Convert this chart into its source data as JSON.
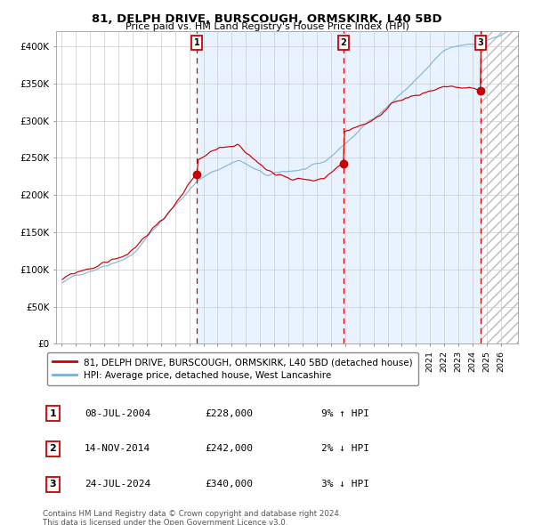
{
  "title": "81, DELPH DRIVE, BURSCOUGH, ORMSKIRK, L40 5BD",
  "subtitle": "Price paid vs. HM Land Registry's House Price Index (HPI)",
  "ylim": [
    0,
    420000
  ],
  "yticks": [
    0,
    50000,
    100000,
    150000,
    200000,
    250000,
    300000,
    350000,
    400000
  ],
  "ytick_labels": [
    "£0",
    "£50K",
    "£100K",
    "£150K",
    "£200K",
    "£250K",
    "£300K",
    "£350K",
    "£400K"
  ],
  "line1_color": "#cc0000",
  "line2_color": "#7bafd4",
  "sale_marker_color": "#cc0000",
  "vline_color": "#cc0000",
  "shade_color": "#ddeeff",
  "sale1_date": 2004.52,
  "sale1_price": 228000,
  "sale2_date": 2014.87,
  "sale2_price": 242000,
  "sale3_date": 2024.56,
  "sale3_price": 340000,
  "legend_line1": "81, DELPH DRIVE, BURSCOUGH, ORMSKIRK, L40 5BD (detached house)",
  "legend_line2": "HPI: Average price, detached house, West Lancashire",
  "table_entries": [
    {
      "num": "1",
      "date": "08-JUL-2004",
      "price": "£228,000",
      "change": "9% ↑ HPI"
    },
    {
      "num": "2",
      "date": "14-NOV-2014",
      "price": "£242,000",
      "change": "2% ↓ HPI"
    },
    {
      "num": "3",
      "date": "24-JUL-2024",
      "price": "£340,000",
      "change": "3% ↓ HPI"
    }
  ],
  "footnote1": "Contains HM Land Registry data © Crown copyright and database right 2024.",
  "footnote2": "This data is licensed under the Open Government Licence v3.0.",
  "grid_color": "#cccccc",
  "bg_color": "#ffffff"
}
